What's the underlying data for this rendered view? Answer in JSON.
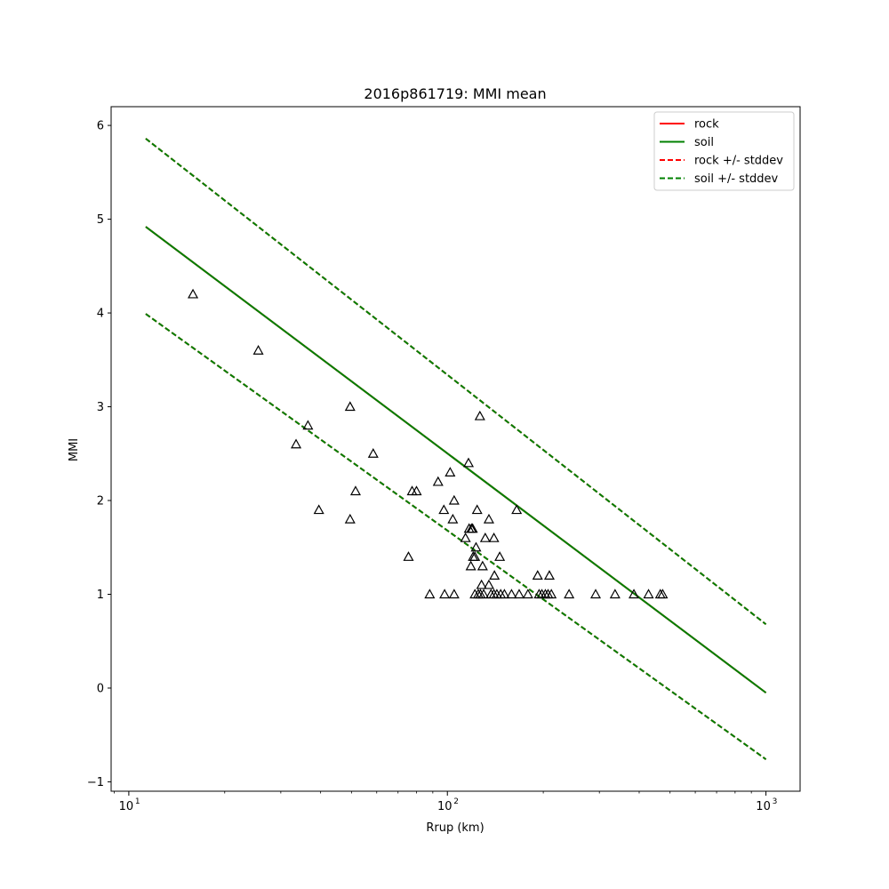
{
  "chart_data": {
    "type": "scatter",
    "title": "2016p861719: MMI mean",
    "xlabel": "Rrup (km)",
    "ylabel": "MMI",
    "xscale": "log",
    "xlim": [
      8.8,
      1280
    ],
    "ylim": [
      -1.1,
      6.2
    ],
    "grid": false,
    "legend_position": "top-right",
    "x_tick_values": [
      10,
      100,
      1000
    ],
    "x_tick_base": "10",
    "x_tick_exponents": [
      "1",
      "2",
      "3"
    ],
    "y_ticks": [
      -1,
      0,
      1,
      2,
      3,
      4,
      5,
      6
    ],
    "y_tick_labels": [
      "−1",
      "0",
      "1",
      "2",
      "3",
      "4",
      "5",
      "6"
    ],
    "series": [
      {
        "name": "rock",
        "color": "#ff0000",
        "style": "solid",
        "x": [
          11.3,
          1000
        ],
        "y": [
          4.92,
          -0.05
        ]
      },
      {
        "name": "soil",
        "color": "#008000",
        "style": "solid",
        "x": [
          11.3,
          1000
        ],
        "y": [
          4.92,
          -0.05
        ]
      },
      {
        "name": "rock +/- stddev",
        "color": "#ff0000",
        "style": "dashed",
        "x": [
          11.3,
          1000
        ],
        "y_upper": [
          5.86,
          0.68
        ],
        "y_lower": [
          3.99,
          -0.76
        ]
      },
      {
        "name": "soil +/- stddev",
        "color": "#008000",
        "style": "dashed",
        "x": [
          11.3,
          1000
        ],
        "y_upper": [
          5.86,
          0.68
        ],
        "y_lower": [
          3.99,
          -0.76
        ]
      }
    ],
    "observations": {
      "marker": "triangle-open",
      "color": "#000000",
      "points": [
        [
          15.9,
          4.2
        ],
        [
          25.5,
          3.6
        ],
        [
          36.5,
          2.8
        ],
        [
          33.5,
          2.6
        ],
        [
          49.5,
          3.0
        ],
        [
          51.5,
          2.1
        ],
        [
          39.5,
          1.9
        ],
        [
          49.5,
          1.8
        ],
        [
          58.5,
          2.5
        ],
        [
          75.5,
          1.4
        ],
        [
          77.5,
          2.1
        ],
        [
          80.0,
          2.1
        ],
        [
          93.5,
          2.2
        ],
        [
          97.5,
          1.9
        ],
        [
          102.0,
          2.3
        ],
        [
          104.0,
          1.8
        ],
        [
          105.0,
          2.0
        ],
        [
          114.0,
          1.6
        ],
        [
          116.5,
          2.4
        ],
        [
          117.0,
          1.7
        ],
        [
          119.0,
          1.7
        ],
        [
          120.0,
          1.7
        ],
        [
          118.5,
          1.3
        ],
        [
          120.5,
          1.4
        ],
        [
          122.0,
          1.4
        ],
        [
          123.0,
          1.5
        ],
        [
          124.0,
          1.9
        ],
        [
          126.5,
          2.9
        ],
        [
          129.0,
          1.3
        ],
        [
          131.5,
          1.6
        ],
        [
          135.0,
          1.8
        ],
        [
          140.0,
          1.6
        ],
        [
          140.5,
          1.2
        ],
        [
          146.0,
          1.4
        ],
        [
          128.0,
          1.1
        ],
        [
          135.0,
          1.1
        ],
        [
          165.0,
          1.9
        ],
        [
          192.0,
          1.2
        ],
        [
          209.0,
          1.2
        ],
        [
          88.0,
          1.0
        ],
        [
          98.0,
          1.0
        ],
        [
          105.0,
          1.0
        ],
        [
          122.0,
          1.0
        ],
        [
          125.0,
          1.0
        ],
        [
          127.0,
          1.0
        ],
        [
          130.0,
          1.0
        ],
        [
          137.0,
          1.0
        ],
        [
          140.0,
          1.0
        ],
        [
          143.0,
          1.0
        ],
        [
          147.0,
          1.0
        ],
        [
          151.0,
          1.0
        ],
        [
          159.0,
          1.0
        ],
        [
          168.0,
          1.0
        ],
        [
          179.0,
          1.0
        ],
        [
          194.0,
          1.0
        ],
        [
          198.0,
          1.0
        ],
        [
          203.0,
          1.0
        ],
        [
          207.0,
          1.0
        ],
        [
          212.0,
          1.0
        ],
        [
          241.0,
          1.0
        ],
        [
          292.0,
          1.0
        ],
        [
          336.0,
          1.0
        ],
        [
          385.0,
          1.0
        ],
        [
          428.0,
          1.0
        ],
        [
          466.0,
          1.0
        ],
        [
          474.0,
          1.0
        ]
      ]
    }
  }
}
